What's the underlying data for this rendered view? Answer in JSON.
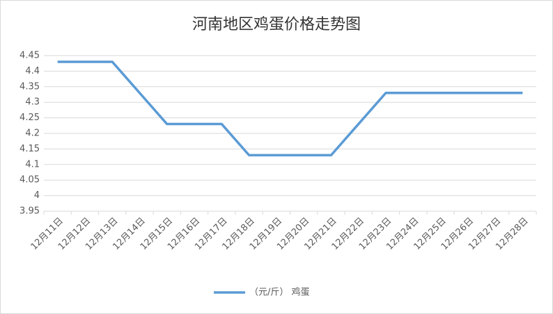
{
  "chart_data": {
    "type": "line",
    "title": "河南地区鸡蛋价格走势图",
    "categories": [
      "12月11日",
      "12月12日",
      "12月13日",
      "12月14日",
      "12月15日",
      "12月16日",
      "12月17日",
      "12月18日",
      "12月19日",
      "12月20日",
      "12月21日",
      "12月22日",
      "12月23日",
      "12月24日",
      "12月25日",
      "12月26日",
      "12月27日",
      "12月28日"
    ],
    "series": [
      {
        "name": "（元/斤） 鸡蛋",
        "color": "#5b9bd5",
        "values": [
          4.43,
          4.43,
          4.43,
          4.33,
          4.23,
          4.23,
          4.23,
          4.13,
          4.13,
          4.13,
          4.13,
          4.23,
          4.33,
          4.33,
          4.33,
          4.33,
          4.33,
          4.33
        ]
      }
    ],
    "ylim": [
      3.95,
      4.45
    ],
    "yticks": [
      3.95,
      4,
      4.05,
      4.1,
      4.15,
      4.2,
      4.25,
      4.3,
      4.35,
      4.4,
      4.45
    ],
    "grid": true,
    "legend": "bottom"
  }
}
